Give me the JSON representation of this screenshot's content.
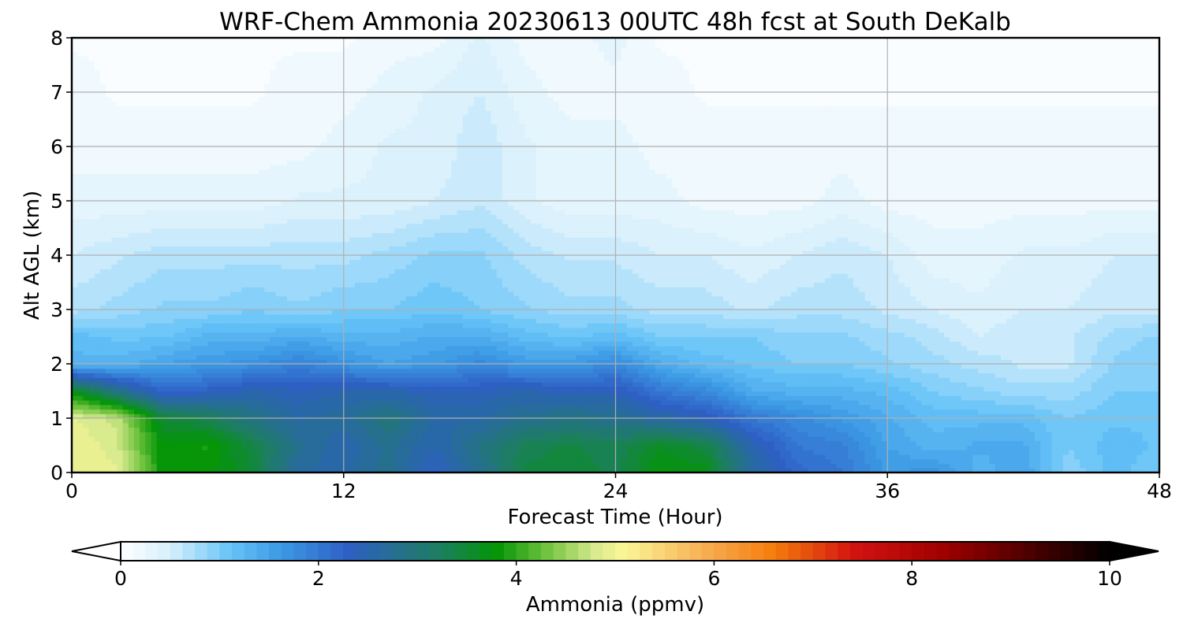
{
  "chart_data": {
    "type": "heatmap",
    "title": "WRF-Chem Ammonia  20230613 00UTC 48h fcst at South DeKalb",
    "xlabel": "Forecast Time (Hour)",
    "ylabel": "Alt AGL (km)",
    "xlim": [
      0,
      48
    ],
    "ylim": [
      0,
      8
    ],
    "x_ticks": [
      0,
      12,
      24,
      36,
      48
    ],
    "y_ticks": [
      0,
      1,
      2,
      3,
      4,
      5,
      6,
      7,
      8
    ],
    "grid": true,
    "colorbar": {
      "label": "Ammonia  (ppmv)",
      "range": [
        0,
        10
      ],
      "ticks": [
        0,
        2,
        4,
        6,
        8,
        10
      ],
      "extend": "both",
      "stops": [
        [
          0,
          "#ffffff"
        ],
        [
          0.5,
          "#d6effc"
        ],
        [
          1.1,
          "#68c4f8"
        ],
        [
          1.6,
          "#3d9be6"
        ],
        [
          2.3,
          "#2e5fc4"
        ],
        [
          3.2,
          "#1e7d63"
        ],
        [
          3.8,
          "#039506"
        ],
        [
          4.3,
          "#6fc23e"
        ],
        [
          4.8,
          "#d8ea8e"
        ],
        [
          5.1,
          "#fbf695"
        ],
        [
          6,
          "#f7a64a"
        ],
        [
          6.6,
          "#f57d0c"
        ],
        [
          7.4,
          "#d31411"
        ],
        [
          8.3,
          "#a00000"
        ],
        [
          9.2,
          "#4c0000"
        ],
        [
          10,
          "#000000"
        ]
      ]
    },
    "times": [
      0,
      2,
      4,
      6,
      8,
      10,
      12,
      14,
      16,
      18,
      20,
      22,
      24,
      26,
      28,
      30,
      32,
      34,
      36,
      38,
      40,
      42,
      44,
      46,
      48
    ],
    "levels": [
      0,
      0.5,
      1,
      1.5,
      2,
      2.5,
      3,
      4,
      5,
      6,
      7,
      8
    ],
    "values": [
      [
        5.0,
        4.9,
        3.8,
        3.8,
        3.5,
        2.6,
        2.6,
        2.8,
        2.3,
        2.8,
        3.4,
        3.5,
        3.3,
        3.8,
        3.7,
        2.7,
        2.2,
        2.0,
        1.6,
        1.7,
        1.3,
        1.5,
        0.9,
        1.2,
        1.0
      ],
      [
        5.0,
        4.8,
        3.8,
        3.9,
        3.4,
        2.8,
        2.5,
        2.8,
        2.5,
        2.9,
        3.3,
        3.4,
        3.3,
        3.6,
        3.4,
        2.5,
        2.0,
        1.9,
        1.5,
        1.3,
        1.4,
        1.4,
        1.0,
        1.2,
        1.1
      ],
      [
        4.9,
        4.7,
        3.5,
        3.3,
        2.9,
        2.6,
        2.7,
        3.0,
        2.6,
        2.6,
        2.8,
        2.9,
        2.8,
        2.6,
        2.4,
        2.0,
        1.8,
        1.6,
        1.4,
        1.2,
        1.2,
        1.2,
        1.0,
        1.1,
        1.1
      ],
      [
        3.7,
        2.9,
        2.2,
        2.3,
        2.5,
        2.4,
        2.5,
        2.5,
        2.4,
        2.4,
        2.5,
        2.4,
        2.4,
        2.0,
        1.8,
        1.4,
        1.3,
        1.3,
        1.2,
        1.0,
        0.9,
        0.8,
        0.8,
        1.0,
        1.0
      ],
      [
        1.3,
        1.3,
        1.5,
        1.6,
        1.7,
        1.9,
        1.7,
        1.5,
        1.6,
        1.8,
        1.6,
        1.6,
        1.8,
        1.4,
        1.2,
        1.1,
        1.0,
        1.0,
        0.9,
        0.8,
        0.7,
        0.6,
        0.6,
        0.9,
        1.0
      ],
      [
        1.2,
        1.1,
        1.1,
        1.3,
        1.3,
        1.4,
        1.3,
        1.3,
        1.4,
        1.4,
        1.2,
        1.1,
        1.2,
        1.0,
        1.0,
        1.0,
        0.9,
        0.9,
        0.8,
        0.7,
        0.5,
        0.6,
        0.6,
        0.8,
        0.9
      ],
      [
        0.7,
        0.8,
        0.9,
        0.9,
        1.0,
        0.9,
        1.0,
        1.0,
        1.1,
        1.0,
        0.9,
        0.8,
        0.8,
        0.7,
        0.7,
        0.6,
        0.7,
        0.7,
        0.6,
        0.5,
        0.4,
        0.5,
        0.5,
        0.6,
        0.6
      ],
      [
        0.5,
        0.6,
        0.7,
        0.7,
        0.7,
        0.7,
        0.7,
        0.8,
        0.9,
        0.9,
        0.7,
        0.6,
        0.6,
        0.5,
        0.5,
        0.4,
        0.5,
        0.6,
        0.5,
        0.3,
        0.3,
        0.4,
        0.4,
        0.5,
        0.5
      ],
      [
        0.3,
        0.3,
        0.3,
        0.3,
        0.3,
        0.4,
        0.4,
        0.4,
        0.5,
        0.6,
        0.4,
        0.3,
        0.3,
        0.3,
        0.2,
        0.2,
        0.2,
        0.3,
        0.2,
        0.2,
        0.2,
        0.2,
        0.2,
        0.2,
        0.2
      ],
      [
        0.2,
        0.2,
        0.2,
        0.2,
        0.2,
        0.2,
        0.3,
        0.4,
        0.4,
        0.6,
        0.4,
        0.3,
        0.3,
        0.2,
        0.2,
        0.2,
        0.2,
        0.2,
        0.2,
        0.2,
        0.2,
        0.2,
        0.2,
        0.2,
        0.2
      ],
      [
        0.2,
        0.1,
        0.1,
        0.1,
        0.1,
        0.2,
        0.2,
        0.3,
        0.4,
        0.5,
        0.3,
        0.2,
        0.2,
        0.2,
        0.1,
        0.1,
        0.1,
        0.1,
        0.1,
        0.1,
        0.1,
        0.1,
        0.1,
        0.1,
        0.1
      ],
      [
        0.1,
        0.1,
        0.1,
        0.1,
        0.1,
        0.1,
        0.1,
        0.2,
        0.2,
        0.4,
        0.2,
        0.2,
        0.3,
        0.1,
        0.1,
        0.1,
        0.1,
        0.1,
        0.1,
        0.1,
        0.1,
        0.1,
        0.1,
        0.1,
        0.1
      ]
    ]
  }
}
